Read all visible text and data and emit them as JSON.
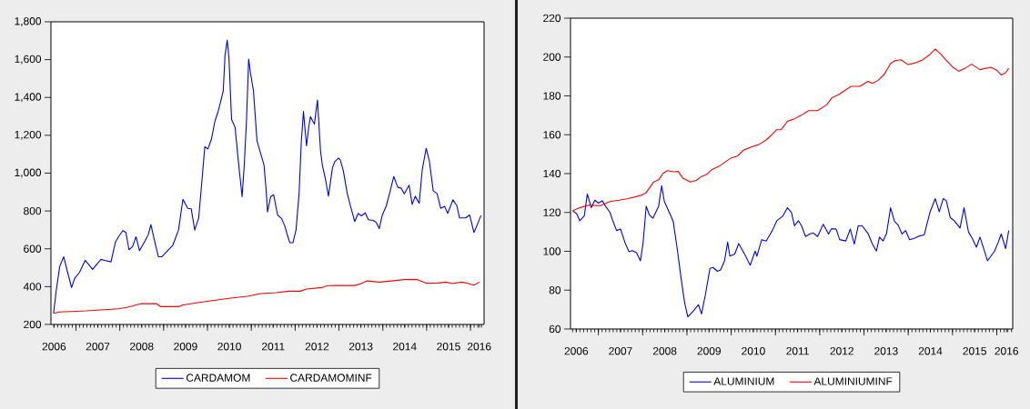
{
  "chart_data": [
    {
      "type": "line",
      "xlim": [
        2006.43,
        2016.31
      ],
      "ylim": [
        200,
        1800
      ],
      "xticks": [
        {
          "value": 2006.5,
          "label": "2006"
        },
        {
          "value": 2007,
          "label": null
        },
        {
          "value": 2007.5,
          "label": "2007"
        },
        {
          "value": 2008,
          "label": null
        },
        {
          "value": 2008.5,
          "label": "2008"
        },
        {
          "value": 2009,
          "label": null
        },
        {
          "value": 2009.5,
          "label": "2009"
        },
        {
          "value": 2010,
          "label": null
        },
        {
          "value": 2010.5,
          "label": "2010"
        },
        {
          "value": 2011,
          "label": null
        },
        {
          "value": 2011.5,
          "label": "2011"
        },
        {
          "value": 2012,
          "label": null
        },
        {
          "value": 2012.5,
          "label": "2012"
        },
        {
          "value": 2013,
          "label": null
        },
        {
          "value": 2013.5,
          "label": "2013"
        },
        {
          "value": 2014,
          "label": null
        },
        {
          "value": 2014.5,
          "label": "2014"
        },
        {
          "value": 2015,
          "label": null
        },
        {
          "value": 2015.5,
          "label": "2015"
        },
        {
          "value": 2016,
          "label": null
        },
        {
          "value": 2016.2,
          "label": "2016"
        }
      ],
      "yticks": [
        200,
        400,
        600,
        800,
        {
          "value": 1000,
          "label": "1,000"
        },
        {
          "value": 1200,
          "label": "1,200"
        },
        {
          "value": 1400,
          "label": "1,400"
        },
        {
          "value": 1600,
          "label": "1,600"
        },
        {
          "value": 1800,
          "label": "1,800"
        }
      ],
      "legend": "bottom",
      "series": [
        {
          "name": "CARDAMOM",
          "color": "#0000ff",
          "x": [
            2006.49,
            2006.55,
            2006.63,
            2006.72,
            2006.81,
            2006.9,
            2006.97,
            2007.08,
            2007.21,
            2007.38,
            2007.57,
            2007.66,
            2007.8,
            2007.9,
            2007.98,
            2008.07,
            2008.14,
            2008.21,
            2008.29,
            2008.37,
            2008.45,
            2008.58,
            2008.65,
            2008.71,
            2008.8,
            2008.88,
            2008.96,
            2009.08,
            2009.21,
            2009.34,
            2009.44,
            2009.55,
            2009.63,
            2009.71,
            2009.8,
            2009.86,
            2009.94,
            2010.01,
            2010.09,
            2010.17,
            2010.24,
            2010.31,
            2010.36,
            2010.4,
            2010.45,
            2010.49,
            2010.55,
            2010.63,
            2010.7,
            2010.79,
            2010.84,
            2010.89,
            2010.94,
            2010.98,
            2011.05,
            2011.13,
            2011.22,
            2011.29,
            2011.34,
            2011.37,
            2011.44,
            2011.51,
            2011.6,
            2011.69,
            2011.76,
            2011.83,
            2011.88,
            2011.95,
            2012.02,
            2012.09,
            2012.14,
            2012.19,
            2012.26,
            2012.31,
            2012.35,
            2012.4,
            2012.44,
            2012.47,
            2012.51,
            2012.58,
            2012.62,
            2012.69,
            2012.76,
            2012.85,
            2012.9,
            2012.99,
            2013.03,
            2013.1,
            2013.19,
            2013.28,
            2013.36,
            2013.44,
            2013.51,
            2013.6,
            2013.67,
            2013.78,
            2013.85,
            2013.92,
            2013.99,
            2014.08,
            2014.17,
            2014.25,
            2014.34,
            2014.42,
            2014.49,
            2014.6,
            2014.67,
            2014.74,
            2014.83,
            2014.9,
            2014.99,
            2015.06,
            2015.15,
            2015.24,
            2015.32,
            2015.41,
            2015.48,
            2015.6,
            2015.69,
            2015.75,
            2015.89,
            2015.98,
            2016.08,
            2016.24
          ],
          "values": [
            259,
            379,
            507,
            558,
            475,
            395,
            443,
            475,
            539,
            491,
            544,
            539,
            531,
            635,
            667,
            696,
            686,
            595,
            611,
            664,
            590,
            643,
            675,
            728,
            635,
            558,
            558,
            587,
            619,
            699,
            862,
            814,
            811,
            699,
            763,
            923,
            1139,
            1128,
            1179,
            1275,
            1323,
            1387,
            1435,
            1619,
            1704,
            1611,
            1283,
            1243,
            1075,
            875,
            1043,
            1275,
            1603,
            1531,
            1435,
            1171,
            1099,
            1043,
            907,
            795,
            875,
            886,
            779,
            760,
            723,
            667,
            632,
            632,
            699,
            891,
            1163,
            1326,
            1144,
            1243,
            1299,
            1275,
            1259,
            1315,
            1387,
            1115,
            1043,
            971,
            878,
            1027,
            1059,
            1080,
            1070,
            1011,
            891,
            811,
            744,
            787,
            774,
            790,
            754,
            750,
            739,
            707,
            779,
            827,
            907,
            982,
            926,
            920,
            891,
            936,
            835,
            878,
            840,
            1019,
            1131,
            1067,
            907,
            891,
            814,
            824,
            787,
            859,
            827,
            763,
            763,
            779,
            686,
            776
          ]
        },
        {
          "name": "CARDAMOMINF",
          "color": "#ff0000",
          "x": [
            2006.49,
            2006.62,
            2007.24,
            2007.97,
            2008.18,
            2008.49,
            2008.83,
            2008.94,
            2009.35,
            2009.42,
            2009.77,
            2010.11,
            2010.53,
            2010.94,
            2011.22,
            2011.57,
            2011.85,
            2012.12,
            2012.26,
            2012.61,
            2012.74,
            2012.95,
            2013.36,
            2013.51,
            2013.64,
            2013.92,
            2014.2,
            2014.48,
            2014.79,
            2014.99,
            2015.27,
            2015.44,
            2015.58,
            2015.81,
            2015.95,
            2016.08,
            2016.21
          ],
          "values": [
            259,
            266,
            272,
            283,
            291,
            310,
            310,
            294,
            294,
            302,
            315,
            326,
            339,
            350,
            363,
            368,
            376,
            376,
            387,
            395,
            405,
            406,
            406,
            416,
            430,
            424,
            430,
            437,
            437,
            418,
            419,
            424,
            416,
            424,
            416,
            408,
            424
          ]
        }
      ]
    },
    {
      "type": "line",
      "xlim": [
        2006.37,
        2016.36
      ],
      "ylim": [
        60,
        220
      ],
      "xticks": [
        {
          "value": 2006.5,
          "label": "2006"
        },
        {
          "value": 2007,
          "label": null
        },
        {
          "value": 2007.5,
          "label": "2007"
        },
        {
          "value": 2008,
          "label": null
        },
        {
          "value": 2008.5,
          "label": "2008"
        },
        {
          "value": 2009,
          "label": null
        },
        {
          "value": 2009.5,
          "label": "2009"
        },
        {
          "value": 2010,
          "label": null
        },
        {
          "value": 2010.5,
          "label": "2010"
        },
        {
          "value": 2011,
          "label": null
        },
        {
          "value": 2011.5,
          "label": "2011"
        },
        {
          "value": 2012,
          "label": null
        },
        {
          "value": 2012.5,
          "label": "2012"
        },
        {
          "value": 2013,
          "label": null
        },
        {
          "value": 2013.5,
          "label": "2013"
        },
        {
          "value": 2014,
          "label": null
        },
        {
          "value": 2014.5,
          "label": "2014"
        },
        {
          "value": 2015,
          "label": null
        },
        {
          "value": 2015.5,
          "label": "2015"
        },
        {
          "value": 2016,
          "label": null
        },
        {
          "value": 2016.22,
          "label": "2016"
        }
      ],
      "yticks": [
        60,
        80,
        100,
        120,
        140,
        160,
        180,
        200,
        220
      ],
      "legend": "bottom",
      "series": [
        {
          "name": "ALUMINIUM",
          "color": "#0000ff",
          "x": [
            2006.42,
            2006.51,
            2006.58,
            2006.68,
            2006.75,
            2006.84,
            2006.92,
            2007.0,
            2007.09,
            2007.16,
            2007.26,
            2007.33,
            2007.41,
            2007.5,
            2007.6,
            2007.69,
            2007.77,
            2007.86,
            2007.95,
            2008.01,
            2008.08,
            2008.15,
            2008.23,
            2008.36,
            2008.43,
            2008.49,
            2008.6,
            2008.69,
            2008.78,
            2008.87,
            2008.95,
            2009.02,
            2009.15,
            2009.26,
            2009.33,
            2009.42,
            2009.52,
            2009.59,
            2009.69,
            2009.76,
            2009.85,
            2009.92,
            2009.97,
            2010.08,
            2010.17,
            2010.31,
            2010.43,
            2010.54,
            2010.58,
            2010.69,
            2010.79,
            2010.93,
            2011.03,
            2011.17,
            2011.27,
            2011.36,
            2011.43,
            2011.52,
            2011.59,
            2011.68,
            2011.77,
            2011.85,
            2011.95,
            2012.08,
            2012.2,
            2012.26,
            2012.37,
            2012.45,
            2012.59,
            2012.69,
            2012.78,
            2012.87,
            2012.96,
            2013.09,
            2013.19,
            2013.28,
            2013.35,
            2013.43,
            2013.51,
            2013.6,
            2013.69,
            2013.77,
            2013.86,
            2013.94,
            2014.03,
            2014.15,
            2014.25,
            2014.36,
            2014.49,
            2014.61,
            2014.7,
            2014.79,
            2014.86,
            2014.95,
            2015.04,
            2015.17,
            2015.26,
            2015.36,
            2015.45,
            2015.54,
            2015.62,
            2015.7,
            2015.79,
            2015.95,
            2016.03,
            2016.1,
            2016.2,
            2016.27
          ],
          "values": [
            120.9,
            119.3,
            115.7,
            118.2,
            129.5,
            122.4,
            126.3,
            124.8,
            126.0,
            123.2,
            120.1,
            115.4,
            110.7,
            111.5,
            104.5,
            99.8,
            100.3,
            99.3,
            95.1,
            104.5,
            123.2,
            118.8,
            117.0,
            123.2,
            133.8,
            125.6,
            120.1,
            115.4,
            101.4,
            85.8,
            73.3,
            66.2,
            69.4,
            72.5,
            67.8,
            78.0,
            91.2,
            91.7,
            89.7,
            90.4,
            95.1,
            104.8,
            97.5,
            98.6,
            104.0,
            98.2,
            92.8,
            100.1,
            97.5,
            106.0,
            105.3,
            110.7,
            115.7,
            118.2,
            122.4,
            120.1,
            113.1,
            115.7,
            113.1,
            107.6,
            108.9,
            109.5,
            107.6,
            113.9,
            108.9,
            111.5,
            111.5,
            106.0,
            105.3,
            111.5,
            103.7,
            113.1,
            113.1,
            109.2,
            103.7,
            100.1,
            107.3,
            105.3,
            109.2,
            122.4,
            115.4,
            113.5,
            108.9,
            110.7,
            106.0,
            106.8,
            107.9,
            108.4,
            120.1,
            127.1,
            120.4,
            127.1,
            126.0,
            117.3,
            115.7,
            112.0,
            122.4,
            110.0,
            106.4,
            102.1,
            107.3,
            101.7,
            95.1,
            100.1,
            104.5,
            108.9,
            101.4,
            110.7
          ]
        },
        {
          "name": "ALUMINIUMINF",
          "color": "#ff0000",
          "x": [
            2006.42,
            2006.58,
            2006.78,
            2007.05,
            2007.26,
            2007.47,
            2007.67,
            2007.95,
            2008.08,
            2008.25,
            2008.36,
            2008.46,
            2008.56,
            2008.71,
            2008.8,
            2008.91,
            2009.08,
            2009.21,
            2009.32,
            2009.45,
            2009.56,
            2009.73,
            2009.86,
            2009.99,
            2010.14,
            2010.28,
            2010.45,
            2010.62,
            2010.79,
            2010.89,
            2011.03,
            2011.13,
            2011.27,
            2011.41,
            2011.58,
            2011.75,
            2011.95,
            2012.16,
            2012.28,
            2012.43,
            2012.6,
            2012.71,
            2012.91,
            2013.09,
            2013.19,
            2013.32,
            2013.46,
            2013.6,
            2013.7,
            2013.84,
            2013.99,
            2014.15,
            2014.32,
            2014.49,
            2014.61,
            2014.73,
            2014.87,
            2015.01,
            2015.14,
            2015.28,
            2015.43,
            2015.62,
            2015.86,
            2016.0,
            2016.1,
            2016.2,
            2016.27
          ],
          "values": [
            120.9,
            122.4,
            123.7,
            123.5,
            125.6,
            126.3,
            127.1,
            128.7,
            130.2,
            135.7,
            136.8,
            140.1,
            141.5,
            140.9,
            141.2,
            137.6,
            135.7,
            136.5,
            138.4,
            139.6,
            142.0,
            143.8,
            145.9,
            147.9,
            149.0,
            152.1,
            153.7,
            154.9,
            157.3,
            159.4,
            162.6,
            162.6,
            166.9,
            168.0,
            170.0,
            172.4,
            172.4,
            175.5,
            179.1,
            180.7,
            183.3,
            184.9,
            184.9,
            187.5,
            186.4,
            188.0,
            191.1,
            196.6,
            198.1,
            198.6,
            196.1,
            196.9,
            198.5,
            201.3,
            204.1,
            201.6,
            198.1,
            194.7,
            192.7,
            194.2,
            196.3,
            193.5,
            194.7,
            193.2,
            190.8,
            191.9,
            194.2
          ]
        }
      ]
    }
  ]
}
